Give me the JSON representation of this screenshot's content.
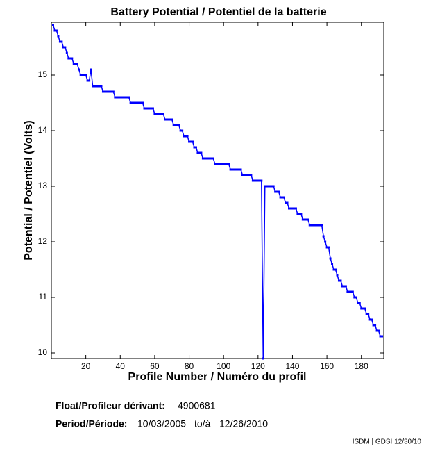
{
  "chart_data": {
    "type": "line",
    "title": "Battery Potential / Potentiel de la batterie",
    "xlabel": "Profile Number / Numéro du profil",
    "ylabel": "Potential / Potentiel (Volts)",
    "float_label": "Float/Profileur dérivant:",
    "float_id": "4900681",
    "period_label": "Period/Période:",
    "period_start": "10/03/2005",
    "period_sep": "to/à",
    "period_end": "12/26/2010",
    "credit": "ISDM | GDSI 12/30/10",
    "color": "#0000ff",
    "xlim": [
      0,
      193
    ],
    "ylim": [
      9.9,
      15.95
    ],
    "xticks": [
      20,
      40,
      60,
      80,
      100,
      120,
      140,
      160,
      180
    ],
    "yticks": [
      10,
      11,
      12,
      13,
      14,
      15
    ],
    "grid": false,
    "x": [
      1,
      2,
      3,
      4,
      5,
      6,
      7,
      8,
      9,
      10,
      11,
      12,
      13,
      14,
      15,
      16,
      17,
      18,
      19,
      20,
      21,
      22,
      23,
      24,
      25,
      26,
      27,
      28,
      29,
      30,
      31,
      32,
      33,
      34,
      35,
      36,
      37,
      38,
      39,
      40,
      41,
      42,
      43,
      44,
      45,
      46,
      47,
      48,
      49,
      50,
      51,
      52,
      53,
      54,
      55,
      56,
      57,
      58,
      59,
      60,
      61,
      62,
      63,
      64,
      65,
      66,
      67,
      68,
      69,
      70,
      71,
      72,
      73,
      74,
      75,
      76,
      77,
      78,
      79,
      80,
      81,
      82,
      83,
      84,
      85,
      86,
      87,
      88,
      89,
      90,
      91,
      92,
      93,
      94,
      95,
      96,
      97,
      98,
      99,
      100,
      101,
      102,
      103,
      104,
      105,
      106,
      107,
      108,
      109,
      110,
      111,
      112,
      113,
      114,
      115,
      116,
      117,
      118,
      119,
      120,
      121,
      122,
      123,
      124,
      125,
      126,
      127,
      128,
      129,
      130,
      131,
      132,
      133,
      134,
      135,
      136,
      137,
      138,
      139,
      140,
      141,
      142,
      143,
      144,
      145,
      146,
      147,
      148,
      149,
      150,
      151,
      152,
      153,
      154,
      155,
      156,
      157,
      158,
      159,
      160,
      161,
      162,
      163,
      164,
      165,
      166,
      167,
      168,
      169,
      170,
      171,
      172,
      173,
      174,
      175,
      176,
      177,
      178,
      179,
      180,
      181,
      182,
      183,
      184,
      185,
      186,
      187,
      188,
      189,
      190,
      191,
      192
    ],
    "values": [
      15.9,
      15.8,
      15.8,
      15.7,
      15.6,
      15.6,
      15.5,
      15.5,
      15.4,
      15.3,
      15.3,
      15.3,
      15.2,
      15.2,
      15.2,
      15.1,
      15.0,
      15.0,
      15.0,
      15.0,
      14.9,
      14.9,
      15.1,
      14.8,
      14.8,
      14.8,
      14.8,
      14.8,
      14.8,
      14.7,
      14.7,
      14.7,
      14.7,
      14.7,
      14.7,
      14.7,
      14.6,
      14.6,
      14.6,
      14.6,
      14.6,
      14.6,
      14.6,
      14.6,
      14.6,
      14.5,
      14.5,
      14.5,
      14.5,
      14.5,
      14.5,
      14.5,
      14.5,
      14.4,
      14.4,
      14.4,
      14.4,
      14.4,
      14.4,
      14.3,
      14.3,
      14.3,
      14.3,
      14.3,
      14.3,
      14.2,
      14.2,
      14.2,
      14.2,
      14.2,
      14.1,
      14.1,
      14.1,
      14.1,
      14.0,
      14.0,
      13.9,
      13.9,
      13.9,
      13.8,
      13.8,
      13.8,
      13.7,
      13.7,
      13.6,
      13.6,
      13.6,
      13.5,
      13.5,
      13.5,
      13.5,
      13.5,
      13.5,
      13.5,
      13.4,
      13.4,
      13.4,
      13.4,
      13.4,
      13.4,
      13.4,
      13.4,
      13.4,
      13.3,
      13.3,
      13.3,
      13.3,
      13.3,
      13.3,
      13.3,
      13.2,
      13.2,
      13.2,
      13.2,
      13.2,
      13.2,
      13.1,
      13.1,
      13.1,
      13.1,
      13.1,
      13.1,
      9.9,
      13.0,
      13.0,
      13.0,
      13.0,
      13.0,
      13.0,
      12.9,
      12.9,
      12.9,
      12.8,
      12.8,
      12.8,
      12.7,
      12.7,
      12.6,
      12.6,
      12.6,
      12.6,
      12.6,
      12.5,
      12.5,
      12.5,
      12.4,
      12.4,
      12.4,
      12.4,
      12.3,
      12.3,
      12.3,
      12.3,
      12.3,
      12.3,
      12.3,
      12.3,
      12.1,
      12.0,
      11.9,
      11.9,
      11.7,
      11.6,
      11.5,
      11.5,
      11.4,
      11.3,
      11.3,
      11.2,
      11.2,
      11.2,
      11.1,
      11.1,
      11.1,
      11.1,
      11.0,
      11.0,
      10.9,
      10.9,
      10.8,
      10.8,
      10.8,
      10.7,
      10.7,
      10.6,
      10.6,
      10.5,
      10.5,
      10.4,
      10.4,
      10.3,
      10.3
    ]
  }
}
